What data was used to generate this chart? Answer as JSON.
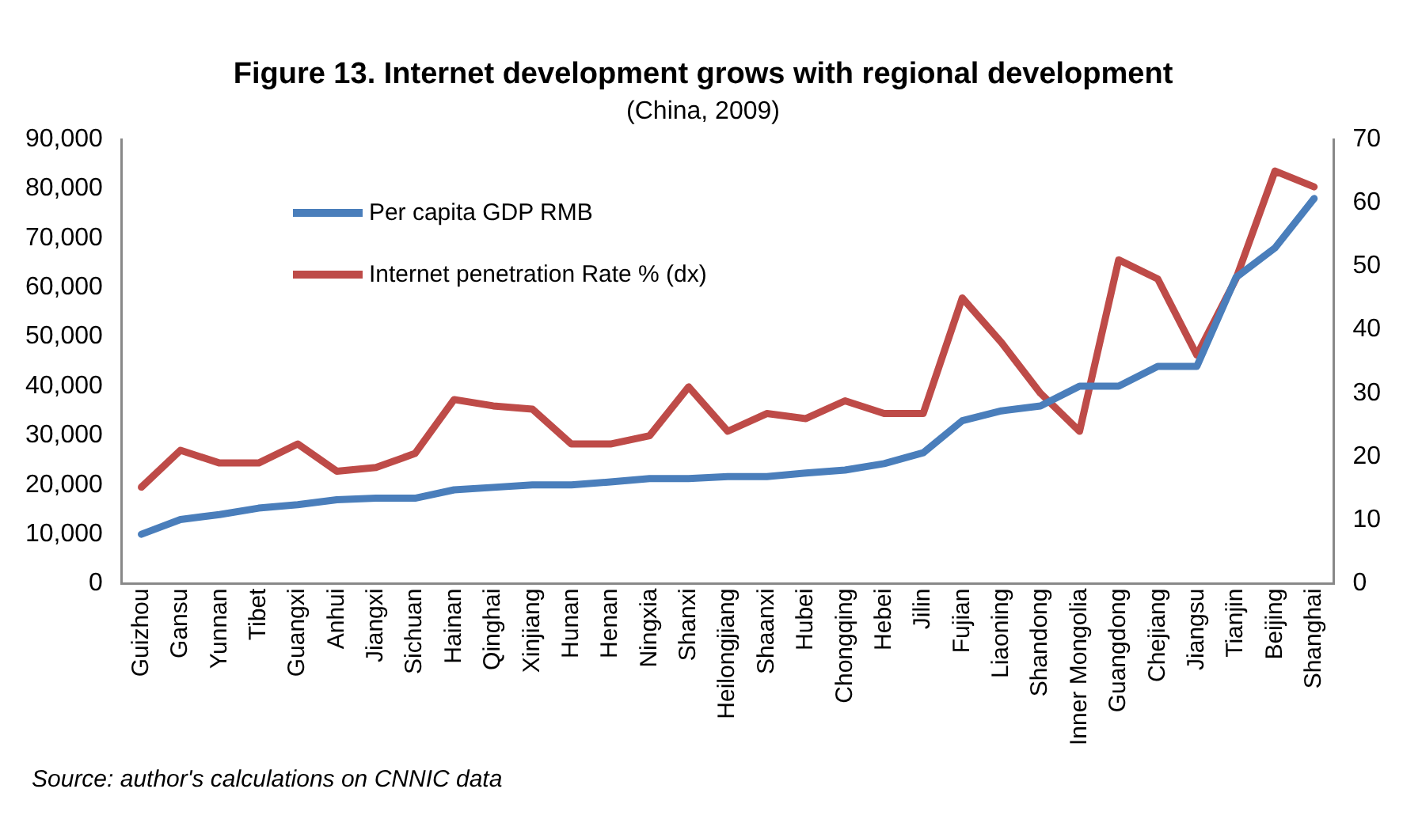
{
  "chart_data": {
    "type": "line",
    "title": "Figure 13. Internet development grows with regional development",
    "subtitle": "(China, 2009)",
    "categories": [
      "Guizhou",
      "Gansu",
      "Yunnan",
      "Tibet",
      "Guangxi",
      "Anhui",
      "Jiangxi",
      "Sichuan",
      "Hainan",
      "Qinghai",
      "Xinjiang",
      "Hunan",
      "Henan",
      "Ningxia",
      "Shanxi",
      "Heilongjiang",
      "Shaanxi",
      "Hubei",
      "Chongqing",
      "Hebei",
      "Jilin",
      "Fujian",
      "Liaoning",
      "Shandong",
      "Inner Mongolia",
      "Guangdong",
      "Chejiang",
      "Jiangsu",
      "Tianjin",
      "Beijing",
      "Shanghai"
    ],
    "series": [
      {
        "name": "Per capita GDP RMB",
        "color": "#4a7ebb",
        "values": [
          10000,
          13000,
          14000,
          15300,
          16000,
          17000,
          17300,
          17300,
          19000,
          19500,
          20000,
          20000,
          20600,
          21300,
          21300,
          21700,
          21700,
          22400,
          23000,
          24300,
          26500,
          33000,
          35000,
          36000,
          40000,
          40000,
          44000,
          44000,
          62000,
          68000,
          78000
        ]
      },
      {
        "name": "Internet penetration Rate % (dx)",
        "color": "#be4b48",
        "axis": "y2",
        "values": [
          15.2,
          21,
          19,
          19,
          22,
          17.7,
          18.3,
          20.5,
          29,
          28,
          27.5,
          22,
          22,
          23.3,
          31,
          24,
          26.8,
          26,
          28.8,
          26.8,
          26.8,
          45,
          38,
          30,
          24,
          51,
          48,
          36,
          48,
          65,
          62.5
        ]
      }
    ],
    "ylim": [
      0,
      90000
    ],
    "yticks": [
      {
        "value": 0,
        "label": "0"
      },
      {
        "value": 10000,
        "label": "10,000"
      },
      {
        "value": 20000,
        "label": "20,000"
      },
      {
        "value": 30000,
        "label": "30,000"
      },
      {
        "value": 40000,
        "label": "40,000"
      },
      {
        "value": 50000,
        "label": "50,000"
      },
      {
        "value": 60000,
        "label": "60,000"
      },
      {
        "value": 70000,
        "label": "70,000"
      },
      {
        "value": 80000,
        "label": "80,000"
      },
      {
        "value": 90000,
        "label": "90,000"
      }
    ],
    "y2lim": [
      0,
      70
    ],
    "y2ticks": [
      0,
      10,
      20,
      30,
      40,
      50,
      60,
      70
    ],
    "grid": false,
    "legend": "top left",
    "marker": "none",
    "line_style": "solid",
    "annotations": [
      "Source: author's calculations on CNNIC data"
    ]
  }
}
